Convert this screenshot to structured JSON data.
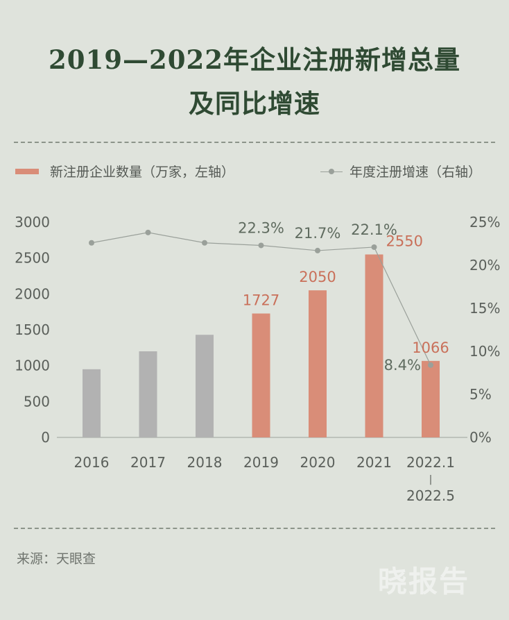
{
  "page": {
    "title_line1": "2019—2022年企业注册新增总量",
    "title_line2": "及同比增速",
    "source": "来源：天眼查",
    "watermark": "晓报告"
  },
  "colors": {
    "background": "#dfe3dc",
    "title": "#2f4a33",
    "bar_gray": "#b2b2b2",
    "bar_salmon": "#d98d78",
    "line": "#9aa09a",
    "axis_text": "#5a5f5a",
    "bar_label": "#c9705a",
    "line_label": "#5f6b5f"
  },
  "chart_data": {
    "type": "bar",
    "categories": [
      "2016",
      "2017",
      "2018",
      "2019",
      "2020",
      "2021",
      "2022.1\n|\n2022.5"
    ],
    "legend": [
      "新注册企业数量（万家，左轴）",
      "年度注册增速（右轴）"
    ],
    "legend_position": "top",
    "grid": false,
    "series": [
      {
        "name": "新注册企业数量（万家，左轴）",
        "type": "bar",
        "axis": "left",
        "values": [
          950,
          1200,
          1430,
          1727,
          2050,
          2550,
          1066
        ],
        "labels": [
          "",
          "",
          "",
          "1727",
          "2050",
          "2550",
          "1066"
        ],
        "highlight": [
          false,
          false,
          false,
          true,
          true,
          true,
          true
        ]
      },
      {
        "name": "年度注册增速（右轴）",
        "type": "line",
        "axis": "right",
        "values": [
          22.6,
          23.8,
          22.6,
          22.3,
          21.7,
          22.1,
          8.4
        ],
        "labels": [
          "",
          "",
          "",
          "22.3%",
          "21.7%",
          "22.1%",
          "8.4%"
        ]
      }
    ],
    "yleft": {
      "min": 0,
      "max": 3000,
      "ticks": [
        "0",
        "500",
        "1000",
        "1500",
        "2000",
        "2500",
        "3000"
      ]
    },
    "yright": {
      "min": 0,
      "max": 25,
      "ticks": [
        "0%",
        "5%",
        "10%",
        "15%",
        "20%",
        "25%"
      ]
    },
    "xlabel": "",
    "ylabel": ""
  }
}
